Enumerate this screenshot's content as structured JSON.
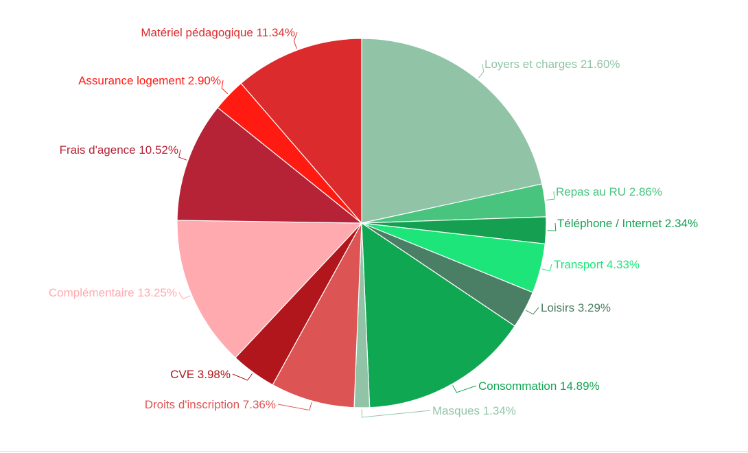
{
  "chart_data": {
    "type": "pie",
    "slices": [
      {
        "label": "Loyers et charges",
        "value": 21.6,
        "display": "21.60%",
        "color": "#91c4a7",
        "label_color": "#91c4a7"
      },
      {
        "label": "Repas au RU",
        "value": 2.86,
        "display": "2.86%",
        "color": "#48c47e",
        "label_color": "#48c47e"
      },
      {
        "label": "Téléphone / Internet",
        "value": 2.34,
        "display": "2.34%",
        "color": "#14a050",
        "label_color": "#14a050"
      },
      {
        "label": "Transport",
        "value": 4.33,
        "display": "4.33%",
        "color": "#1de57a",
        "label_color": "#1de57a"
      },
      {
        "label": "Loisirs",
        "value": 3.29,
        "display": "3.29%",
        "color": "#4a7f65",
        "label_color": "#4a7f65"
      },
      {
        "label": "Consommation",
        "value": 14.89,
        "display": "14.89%",
        "color": "#10a752",
        "label_color": "#10a752"
      },
      {
        "label": "Masques",
        "value": 1.34,
        "display": "1.34%",
        "color": "#91c4a7",
        "label_color": "#91c4a7"
      },
      {
        "label": "Droits d'inscription",
        "value": 7.36,
        "display": "7.36%",
        "color": "#dd5454",
        "label_color": "#dd5454"
      },
      {
        "label": "CVE",
        "value": 3.98,
        "display": "3.98%",
        "color": "#b0161b",
        "label_color": "#b0161b"
      },
      {
        "label": "Complémentaire",
        "value": 13.25,
        "display": "13.25%",
        "color": "#ffaaaf",
        "label_color": "#ffaaaf"
      },
      {
        "label": "Frais d'agence",
        "value": 10.52,
        "display": "10.52%",
        "color": "#b62336",
        "label_color": "#b62336"
      },
      {
        "label": "Assurance logement",
        "value": 2.9,
        "display": "2.90%",
        "color": "#ff1a12",
        "label_color": "#ff1a12"
      },
      {
        "label": "Matériel pédagogique",
        "value": 11.34,
        "display": "11.34%",
        "color": "#dc2b2d",
        "label_color": "#dc2b2d"
      }
    ]
  }
}
